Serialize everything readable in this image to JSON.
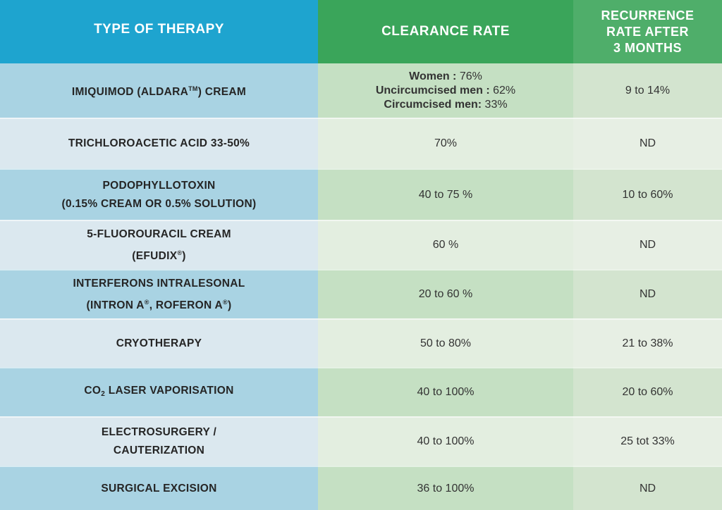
{
  "header": {
    "col1": "TYPE OF THERAPY",
    "col2": "CLEARANCE RATE",
    "col3_line1": "RECURRENCE",
    "col3_line2": "RATE AFTER",
    "col3_line3": "3 MONTHS"
  },
  "rows": [
    {
      "therapy_a": "IMIQUIMOD (ALDARA",
      "therapy_tm": "TM",
      "therapy_b": ") CREAM",
      "clearance": {
        "women_label": "Women :",
        "women_value": " 76%",
        "uncirc_label": "Uncircumcised men :",
        "uncirc_value": " 62%",
        "circ_label": "Circumcised men:",
        "circ_value": " 33%"
      },
      "recurrence": "9 to 14%"
    },
    {
      "therapy": "TRICHLOROACETIC ACID 33-50%",
      "clearance": "70%",
      "recurrence": "ND"
    },
    {
      "therapy_line1": "PODOPHYLLOTOXIN",
      "therapy_line2": "(0.15% CREAM OR 0.5% SOLUTION)",
      "clearance": "40 to 75 %",
      "recurrence": "10 to 60%"
    },
    {
      "therapy_line1": "5-FLUOROURACIL CREAM",
      "therapy_line2a": "(EFUDIX",
      "therapy_line2_mark": "®",
      "therapy_line2b": ")",
      "clearance": "60 %",
      "recurrence": "ND"
    },
    {
      "therapy_line1": "INTERFERONS INTRALESONAL",
      "therapy_line2a": "(INTRON A",
      "mark1": "®",
      "therapy_line2b": ", ROFERON A",
      "mark2": "®",
      "therapy_line2c": ")",
      "clearance": "20 to 60 %",
      "recurrence": "ND"
    },
    {
      "therapy": "CRYOTHERAPY",
      "clearance": "50 to 80%",
      "recurrence": "21 to 38%"
    },
    {
      "therapy_a": "CO",
      "therapy_sub": "2",
      "therapy_b": " LASER VAPORISATION",
      "clearance": "40 to 100%",
      "recurrence": "20 to 60%"
    },
    {
      "therapy_line1": "ELECTROSURGERY /",
      "therapy_line2": "CAUTERIZATION",
      "clearance": "40 to 100%",
      "recurrence": "25 tot 33%"
    },
    {
      "therapy": "SURGICAL EXCISION",
      "clearance": "36 to 100%",
      "recurrence": "ND"
    }
  ]
}
